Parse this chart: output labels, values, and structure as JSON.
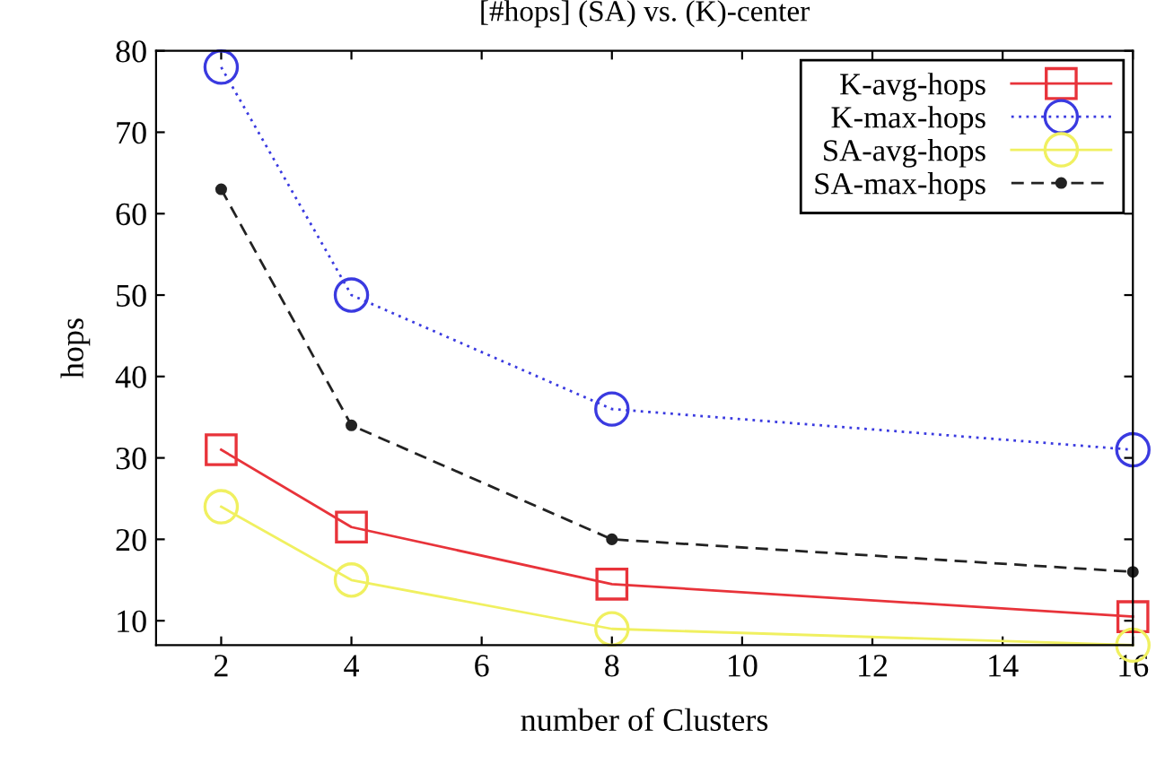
{
  "chart_data": {
    "type": "line",
    "title": "[#hops] (SA) vs. (K)-center",
    "xlabel": "number of Clusters",
    "ylabel": "hops",
    "x": [
      2,
      4,
      8,
      16
    ],
    "series": [
      {
        "name": "K-avg-hops",
        "color": "#e8333a",
        "values": [
          31,
          21.5,
          14.5,
          10.5
        ],
        "marker": "square",
        "line_style": "solid"
      },
      {
        "name": "K-max-hops",
        "color": "#3a3ae0",
        "values": [
          78,
          50,
          36,
          31
        ],
        "marker": "circle",
        "line_style": "dotted"
      },
      {
        "name": "SA-avg-hops",
        "color": "#f0f060",
        "values": [
          24,
          15,
          9,
          7
        ],
        "marker": "circle",
        "line_style": "solid"
      },
      {
        "name": "SA-max-hops",
        "color": "#222222",
        "values": [
          63,
          34,
          20,
          16
        ],
        "marker": "dot",
        "line_style": "dashed"
      }
    ],
    "xlim": [
      1,
      16
    ],
    "xticks": [
      2,
      4,
      6,
      8,
      10,
      12,
      14,
      16
    ],
    "ylim": [
      7,
      80
    ],
    "yticks": [
      10,
      20,
      30,
      40,
      50,
      60,
      70,
      80
    ],
    "grid": false,
    "legend": "top right"
  }
}
